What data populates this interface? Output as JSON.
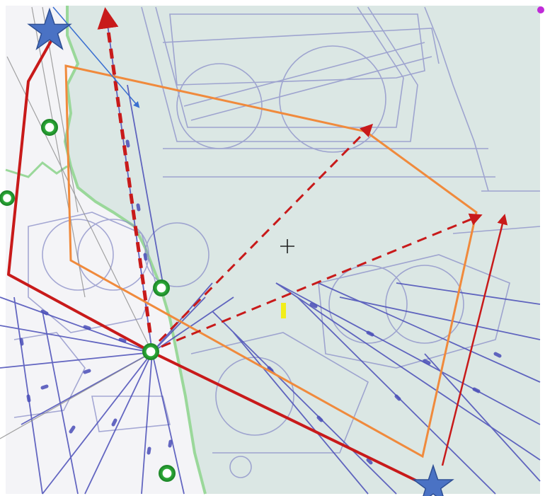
{
  "map": {
    "colors": {
      "page_background": "#ffffff",
      "land": "#f4f4f7",
      "sea": "#dbe7e4",
      "coastline": "#9ad89a",
      "chart_lines": "#8a8ec8",
      "airway_lines": "#4a4eb8",
      "route_red": "#c81a1a",
      "area_orange": "#f08a3c",
      "arrow_blue": "#3a6fd0",
      "star_blue": "#4a72c4",
      "waypoint_green": "#2fae3a",
      "label_yellow": "#f2ee1a",
      "crosshair": "#222222",
      "corner_magenta": "#c02ad8"
    },
    "legend": null,
    "title": null,
    "text_labels": []
  }
}
